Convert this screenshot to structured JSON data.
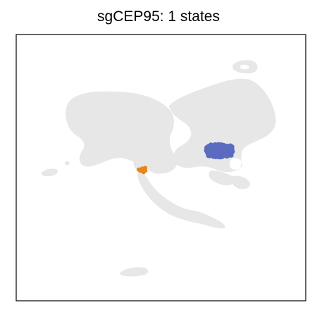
{
  "chart_data": {
    "type": "scatter",
    "title": "sgCEP95: 1 states",
    "xlabel": "",
    "ylabel": "",
    "grid": false,
    "legend": "none",
    "background_color": "#e6e6e6",
    "series": [
      {
        "color": "#5b6bbf",
        "count": 180
      },
      {
        "color": "#e8861a",
        "count": 9
      }
    ]
  }
}
